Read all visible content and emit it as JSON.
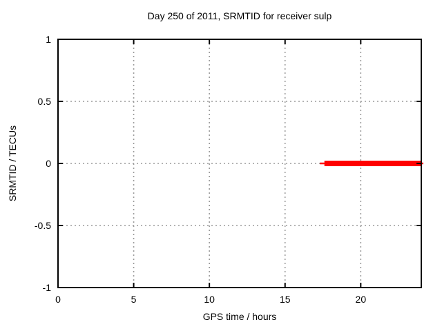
{
  "window": {
    "background": "#ffffff"
  },
  "chart_data": {
    "type": "line",
    "title": "Day 250 of 2011, SRMTID for receiver sulp",
    "xlabel": "GPS time / hours",
    "ylabel": "SRMTID / TECUs",
    "xlim": [
      0,
      24
    ],
    "ylim": [
      -1,
      1
    ],
    "xticks": {
      "values": [
        0,
        5,
        10,
        15,
        20
      ],
      "labels": [
        "0",
        "5",
        "10",
        "15",
        "20"
      ]
    },
    "yticks": {
      "values": [
        -1,
        -0.5,
        0,
        0.5,
        1
      ],
      "labels": [
        "-1",
        "-0.5",
        "0",
        "0.5",
        "1"
      ]
    },
    "grid": true,
    "grid_style": "dashed",
    "legend_position": "none",
    "series": [
      {
        "name": "SRMTID",
        "color": "#ff0000",
        "y_value": 0,
        "x_start": 17.3,
        "x_end": 24,
        "thick_x_start": 17.6,
        "points": [
          [
            17.3,
            0
          ],
          [
            24,
            0
          ]
        ]
      }
    ],
    "colors": {
      "background": "#ffffff",
      "text": "#000000",
      "axis": "#000000",
      "grid": "#9a9a9a",
      "series": "#ff0000"
    }
  }
}
